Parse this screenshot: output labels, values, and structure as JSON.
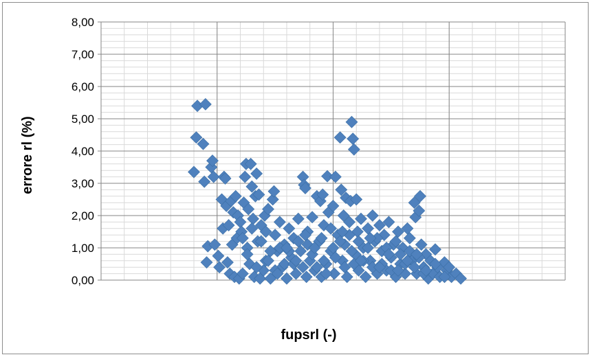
{
  "chart_data": {
    "type": "scatter",
    "title": "",
    "xlabel": "fupsrl (-)",
    "ylabel": "errore rl (%)",
    "ylim": [
      0,
      8
    ],
    "y_ticks": [
      "0,00",
      "1,00",
      "2,00",
      "3,00",
      "4,00",
      "5,00",
      "6,00",
      "7,00",
      "8,00"
    ],
    "xlim": [
      0,
      20
    ],
    "x_tick_labels_visible": false,
    "grid": true,
    "minor_grid": true,
    "legend": "none",
    "marker": "diamond",
    "marker_color": "#4f81bd",
    "series": [
      {
        "name": "",
        "points": [
          [
            4.0,
            3.35
          ],
          [
            4.1,
            4.42
          ],
          [
            4.15,
            5.4
          ],
          [
            4.5,
            5.45
          ],
          [
            4.4,
            4.22
          ],
          [
            4.45,
            3.05
          ],
          [
            4.55,
            0.55
          ],
          [
            4.6,
            1.05
          ],
          [
            4.75,
            3.5
          ],
          [
            4.8,
            3.7
          ],
          [
            4.85,
            3.2
          ],
          [
            4.9,
            1.1
          ],
          [
            5.05,
            0.75
          ],
          [
            5.1,
            0.4
          ],
          [
            5.2,
            2.5
          ],
          [
            5.25,
            1.6
          ],
          [
            5.3,
            3.2
          ],
          [
            5.35,
            3.15
          ],
          [
            5.4,
            2.3
          ],
          [
            5.45,
            0.55
          ],
          [
            5.5,
            1.7
          ],
          [
            5.55,
            0.2
          ],
          [
            5.6,
            2.45
          ],
          [
            5.65,
            1.1
          ],
          [
            5.7,
            2.1
          ],
          [
            5.75,
            0.1
          ],
          [
            5.8,
            2.6
          ],
          [
            5.85,
            1.3
          ],
          [
            5.9,
            2.0
          ],
          [
            5.95,
            0.05
          ],
          [
            6.0,
            1.8
          ],
          [
            6.05,
            1.5
          ],
          [
            6.1,
            0.2
          ],
          [
            6.15,
            2.4
          ],
          [
            6.2,
            3.2
          ],
          [
            6.25,
            3.6
          ],
          [
            6.3,
            1.0
          ],
          [
            6.35,
            2.2
          ],
          [
            6.4,
            0.5
          ],
          [
            6.45,
            3.6
          ],
          [
            6.5,
            2.9
          ],
          [
            6.55,
            1.9
          ],
          [
            6.6,
            0.1
          ],
          [
            6.65,
            2.6
          ],
          [
            6.7,
            3.3
          ],
          [
            6.75,
            1.2
          ],
          [
            6.8,
            2.65
          ],
          [
            6.85,
            0.05
          ],
          [
            6.9,
            1.7
          ],
          [
            7.0,
            0.3
          ],
          [
            7.05,
            2.0
          ],
          [
            7.1,
            0.6
          ],
          [
            7.2,
            2.2
          ],
          [
            7.3,
            0.05
          ],
          [
            7.4,
            2.5
          ],
          [
            7.45,
            2.75
          ],
          [
            7.5,
            1.4
          ],
          [
            7.6,
            0.9
          ],
          [
            7.7,
            1.8
          ],
          [
            7.8,
            0.4
          ],
          [
            7.9,
            1.1
          ],
          [
            8.0,
            0.05
          ],
          [
            8.1,
            1.6
          ],
          [
            8.2,
            0.7
          ],
          [
            8.3,
            1.3
          ],
          [
            8.4,
            0.2
          ],
          [
            8.5,
            1.9
          ],
          [
            8.6,
            0.9
          ],
          [
            8.7,
            3.2
          ],
          [
            8.75,
            2.95
          ],
          [
            8.8,
            2.85
          ],
          [
            8.85,
            0.1
          ],
          [
            8.9,
            1.5
          ],
          [
            9.0,
            0.6
          ],
          [
            9.1,
            1.95
          ],
          [
            9.2,
            0.3
          ],
          [
            9.3,
            2.6
          ],
          [
            9.4,
            1.2
          ],
          [
            9.45,
            2.45
          ],
          [
            9.5,
            0.1
          ],
          [
            9.55,
            2.65
          ],
          [
            9.6,
            1.7
          ],
          [
            9.7,
            0.5
          ],
          [
            9.75,
            3.22
          ],
          [
            9.8,
            2.1
          ],
          [
            9.9,
            0.9
          ],
          [
            10.0,
            2.3
          ],
          [
            10.05,
            0.2
          ],
          [
            10.1,
            3.2
          ],
          [
            10.2,
            1.4
          ],
          [
            10.3,
            4.42
          ],
          [
            10.35,
            2.8
          ],
          [
            10.4,
            0.6
          ],
          [
            10.45,
            2.0
          ],
          [
            10.5,
            1.1
          ],
          [
            10.55,
            2.55
          ],
          [
            10.6,
            0.1
          ],
          [
            10.7,
            1.8
          ],
          [
            10.75,
            2.45
          ],
          [
            10.8,
            4.9
          ],
          [
            10.85,
            4.38
          ],
          [
            10.9,
            4.05
          ],
          [
            10.95,
            0.8
          ],
          [
            11.0,
            2.5
          ],
          [
            11.05,
            1.5
          ],
          [
            11.1,
            0.3
          ],
          [
            11.2,
            1.9
          ],
          [
            11.3,
            1.0
          ],
          [
            11.4,
            0.1
          ],
          [
            11.5,
            1.6
          ],
          [
            11.6,
            0.6
          ],
          [
            11.7,
            2.0
          ],
          [
            11.8,
            1.2
          ],
          [
            11.9,
            0.2
          ],
          [
            12.0,
            1.7
          ],
          [
            12.1,
            0.9
          ],
          [
            12.2,
            1.4
          ],
          [
            12.3,
            0.3
          ],
          [
            12.4,
            1.8
          ],
          [
            12.5,
            0.7
          ],
          [
            12.6,
            1.1
          ],
          [
            12.7,
            0.1
          ],
          [
            12.8,
            1.5
          ],
          [
            12.9,
            0.5
          ],
          [
            13.0,
            1.0
          ],
          [
            13.1,
            0.2
          ],
          [
            13.2,
            1.6
          ],
          [
            13.3,
            1.3
          ],
          [
            13.4,
            0.6
          ],
          [
            13.5,
            2.4
          ],
          [
            13.55,
            1.95
          ],
          [
            13.6,
            0.2
          ],
          [
            13.7,
            2.15
          ],
          [
            13.75,
            2.6
          ],
          [
            13.8,
            1.1
          ],
          [
            13.9,
            0.4
          ],
          [
            14.0,
            0.8
          ],
          [
            14.1,
            0.05
          ],
          [
            14.2,
            0.6
          ],
          [
            14.3,
            0.2
          ],
          [
            14.4,
            0.95
          ],
          [
            14.5,
            0.4
          ],
          [
            14.6,
            0.1
          ],
          [
            14.8,
            0.55
          ],
          [
            14.9,
            0.3
          ],
          [
            15.0,
            0.4
          ],
          [
            15.1,
            0.1
          ],
          [
            15.3,
            0.2
          ],
          [
            15.5,
            0.05
          ],
          [
            6.1,
            1.3
          ],
          [
            6.3,
            0.8
          ],
          [
            6.5,
            1.6
          ],
          [
            6.7,
            0.4
          ],
          [
            6.9,
            1.2
          ],
          [
            7.1,
            1.5
          ],
          [
            7.3,
            0.9
          ],
          [
            7.5,
            0.3
          ],
          [
            7.7,
            1.0
          ],
          [
            7.9,
            0.5
          ],
          [
            8.1,
            0.9
          ],
          [
            8.3,
            0.5
          ],
          [
            8.5,
            1.2
          ],
          [
            8.7,
            0.4
          ],
          [
            8.9,
            1.1
          ],
          [
            9.1,
            0.8
          ],
          [
            9.3,
            0.4
          ],
          [
            9.5,
            1.3
          ],
          [
            9.7,
            0.2
          ],
          [
            9.9,
            1.6
          ],
          [
            10.1,
            0.7
          ],
          [
            10.3,
            1.2
          ],
          [
            10.5,
            0.4
          ],
          [
            10.7,
            1.4
          ],
          [
            10.9,
            0.5
          ],
          [
            11.1,
            1.2
          ],
          [
            11.3,
            0.6
          ],
          [
            11.5,
            1.0
          ],
          [
            11.7,
            0.4
          ],
          [
            11.9,
            1.3
          ],
          [
            12.1,
            0.5
          ],
          [
            12.3,
            1.0
          ],
          [
            12.5,
            0.3
          ],
          [
            12.7,
            1.2
          ],
          [
            12.9,
            0.8
          ],
          [
            13.1,
            0.5
          ],
          [
            13.3,
            0.9
          ],
          [
            13.5,
            0.4
          ],
          [
            13.7,
            0.7
          ],
          [
            13.9,
            0.2
          ],
          [
            7.2,
            0.6
          ],
          [
            7.6,
            0.2
          ],
          [
            8.0,
            1.0
          ],
          [
            8.4,
            0.6
          ],
          [
            8.8,
            1.4
          ],
          [
            9.2,
            1.0
          ],
          [
            9.6,
            0.6
          ],
          [
            10.0,
            1.0
          ],
          [
            10.4,
            1.5
          ],
          [
            10.8,
            0.9
          ],
          [
            11.2,
            0.6
          ],
          [
            11.6,
            1.3
          ],
          [
            12.0,
            0.4
          ],
          [
            12.4,
            0.8
          ],
          [
            12.8,
            0.3
          ],
          [
            13.2,
            0.6
          ],
          [
            13.6,
            0.8
          ],
          [
            14.0,
            0.3
          ],
          [
            14.4,
            0.5
          ],
          [
            14.8,
            0.1
          ]
        ]
      }
    ]
  }
}
